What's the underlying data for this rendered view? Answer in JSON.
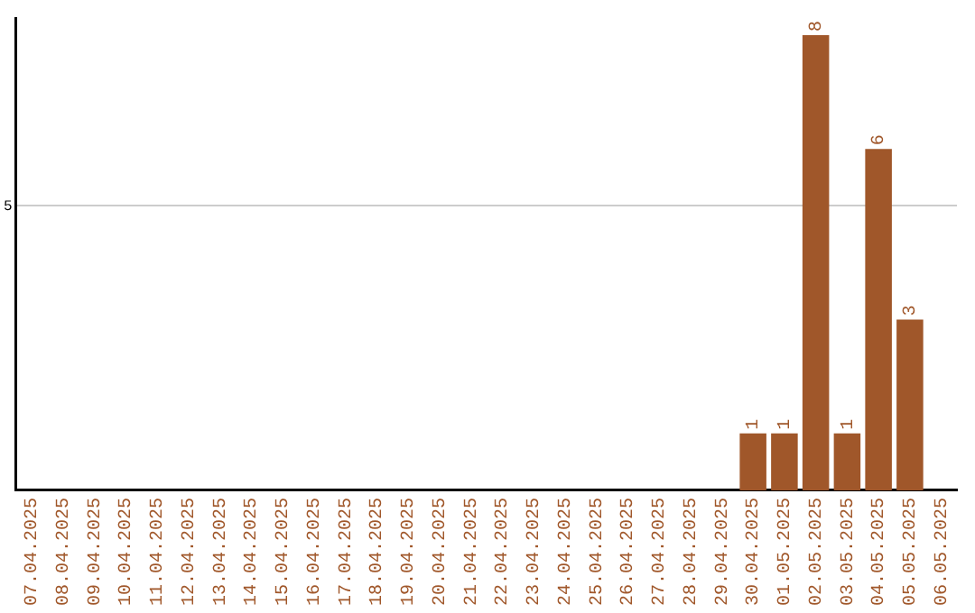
{
  "chart_data": {
    "type": "bar",
    "categories": [
      "07.04.2025",
      "08.04.2025",
      "09.04.2025",
      "10.04.2025",
      "11.04.2025",
      "12.04.2025",
      "13.04.2025",
      "14.04.2025",
      "15.04.2025",
      "16.04.2025",
      "17.04.2025",
      "18.04.2025",
      "19.04.2025",
      "20.04.2025",
      "21.04.2025",
      "22.04.2025",
      "23.04.2025",
      "24.04.2025",
      "25.04.2025",
      "26.04.2025",
      "27.04.2025",
      "28.04.2025",
      "29.04.2025",
      "30.04.2025",
      "01.05.2025",
      "02.05.2025",
      "03.05.2025",
      "04.05.2025",
      "05.05.2025",
      "06.05.2025"
    ],
    "values": [
      null,
      null,
      null,
      null,
      null,
      null,
      null,
      null,
      null,
      null,
      null,
      null,
      null,
      null,
      null,
      null,
      null,
      null,
      null,
      null,
      null,
      null,
      null,
      1,
      1,
      8,
      1,
      6,
      3,
      null
    ],
    "data_labels": true,
    "color": "#a0572a",
    "ylim": [
      0,
      8.3
    ],
    "yticks": [
      5
    ],
    "grid": "y"
  }
}
